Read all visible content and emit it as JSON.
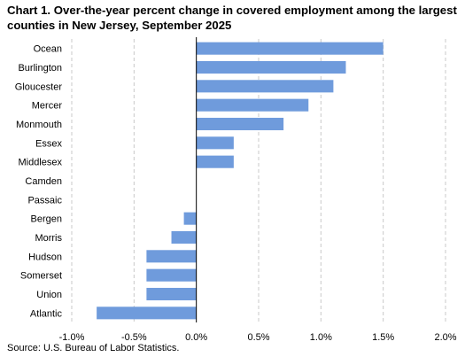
{
  "chart_data": {
    "type": "bar",
    "orientation": "horizontal",
    "title": "Chart 1. Over-the-year percent change in covered employment among the largest counties in New Jersey, September 2025",
    "categories": [
      "Ocean",
      "Burlington",
      "Gloucester",
      "Mercer",
      "Monmouth",
      "Essex",
      "Middlesex",
      "Camden",
      "Passaic",
      "Bergen",
      "Morris",
      "Hudson",
      "Somerset",
      "Union",
      "Atlantic"
    ],
    "values": [
      1.5,
      1.2,
      1.1,
      0.9,
      0.7,
      0.3,
      0.3,
      0.0,
      0.0,
      -0.1,
      -0.2,
      -0.4,
      -0.4,
      -0.4,
      -0.8
    ],
    "xlim": [
      -1.0,
      2.0
    ],
    "xticks": [
      -1.0,
      -0.5,
      0.0,
      0.5,
      1.0,
      1.5,
      2.0
    ],
    "xtick_labels": [
      "-1.0%",
      "-0.5%",
      "0.0%",
      "0.5%",
      "1.0%",
      "1.5%",
      "2.0%"
    ],
    "xlabel": "",
    "ylabel": "",
    "grid": "vertical dashed",
    "bar_color": "#6f9bdc",
    "source": "Source: U.S. Bureau of Labor Statistics."
  }
}
